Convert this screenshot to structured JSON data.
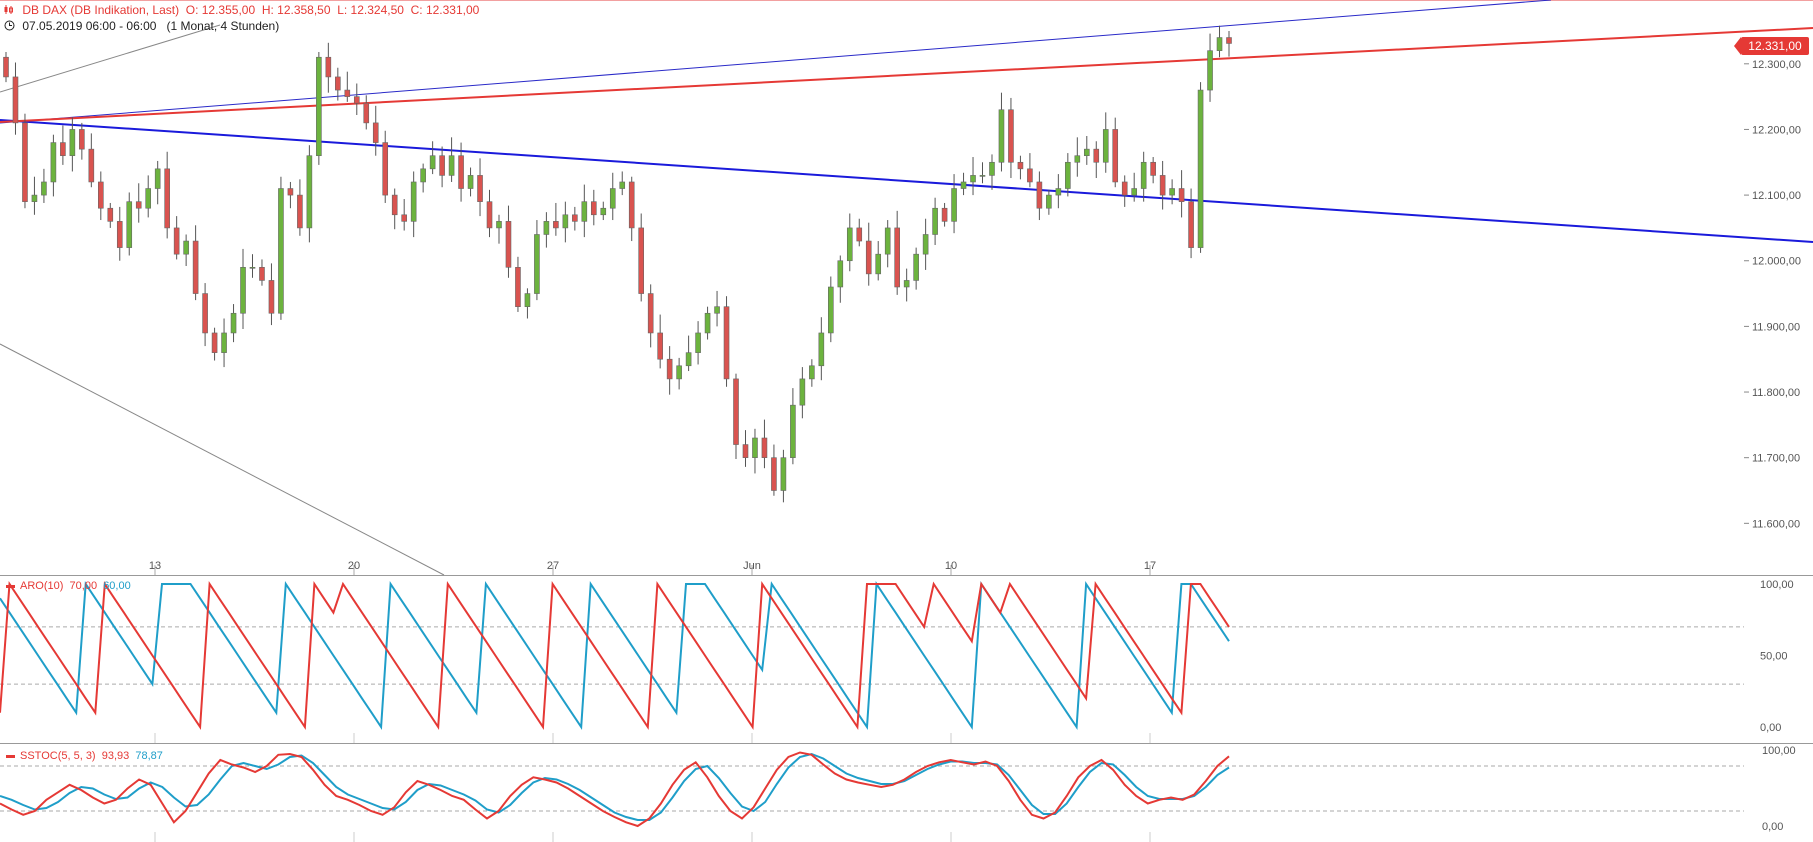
{
  "header": {
    "instrument": "DB DAX (DB Indikation, Last)",
    "open": "O: 12.355,00",
    "high": "H: 12.358,50",
    "low": "L: 12.324,50",
    "close": "C: 12.331,00",
    "date_range": "07.05.2019 06:00 - 06:00",
    "period": "(1 Monat, 4 Stunden)"
  },
  "last_price_label": "12.331,00",
  "colors": {
    "up": "#6cb33e",
    "down": "#d9534f",
    "red": "#e53935",
    "blue": "#1f9ec9",
    "trend_blue": "#1a1adb"
  },
  "indicators": {
    "aro": {
      "label": "ARO(10)",
      "v1": "70,00",
      "v2": "60,00"
    },
    "sstoc": {
      "label": "SSTOC(5, 5, 3)",
      "v1": "93,93",
      "v2": "78,87"
    }
  },
  "chart_data": [
    {
      "type": "candlestick",
      "x_tick_labels": [
        "13",
        "20",
        "27",
        "Jun",
        "10",
        "17"
      ],
      "y_tick_labels": [
        "12.300,00",
        "12.200,00",
        "12.100,00",
        "12.000,00",
        "11.900,00",
        "11.800,00",
        "11.700,00",
        "11.600,00"
      ],
      "y_ticks": [
        12300,
        12200,
        12100,
        12000,
        11900,
        11800,
        11700,
        11600
      ],
      "ylim": [
        11535,
        12385
      ],
      "close": [
        12280,
        12210,
        12090,
        12100,
        12120,
        12180,
        12160,
        12200,
        12170,
        12120,
        12080,
        12060,
        12020,
        12090,
        12080,
        12110,
        12140,
        12050,
        12010,
        12030,
        11950,
        11890,
        11860,
        11890,
        11920,
        11990,
        11990,
        11970,
        11920,
        12110,
        12100,
        12050,
        12160,
        12310,
        12280,
        12260,
        12250,
        12240,
        12210,
        12180,
        12100,
        12070,
        12060,
        12120,
        12140,
        12160,
        12130,
        12160,
        12110,
        12130,
        12090,
        12050,
        12060,
        11990,
        11930,
        11950,
        12040,
        12060,
        12050,
        12070,
        12060,
        12090,
        12070,
        12080,
        12110,
        12120,
        12050,
        11950,
        11890,
        11850,
        11820,
        11840,
        11860,
        11890,
        11920,
        11930,
        11820,
        11720,
        11700,
        11730,
        11700,
        11650,
        11700,
        11780,
        11820,
        11840,
        11890,
        11960,
        12000,
        12050,
        12030,
        11980,
        12010,
        12050,
        11960,
        11970,
        12010,
        12040,
        12080,
        12060,
        12110,
        12120,
        12130,
        12130,
        12150,
        12230,
        12150,
        12140,
        12120,
        12080,
        12100,
        12110,
        12150,
        12160,
        12170,
        12150,
        12200,
        12120,
        12100,
        12110,
        12150,
        12130,
        12100,
        12110,
        12090,
        12020,
        12260,
        12320,
        12340,
        12331
      ],
      "ohlc_note": ""
    },
    {
      "type": "line",
      "name": "ARO(10)",
      "ylim": [
        0,
        100
      ],
      "y_tick_labels": [
        "100,00",
        "50,00",
        "0,00"
      ],
      "series": [
        {
          "name": "70,00",
          "values": [
            10,
            100,
            90,
            80,
            70,
            60,
            50,
            40,
            30,
            20,
            10,
            100,
            90,
            80,
            70,
            60,
            50,
            40,
            30,
            20,
            10,
            0,
            100,
            90,
            80,
            70,
            60,
            50,
            40,
            30,
            20,
            10,
            0,
            100,
            90,
            80,
            100,
            90,
            80,
            70,
            60,
            50,
            40,
            30,
            20,
            10,
            0,
            100,
            90,
            80,
            70,
            60,
            50,
            40,
            30,
            20,
            10,
            0,
            100,
            90,
            80,
            70,
            60,
            50,
            40,
            30,
            20,
            10,
            0,
            100,
            90,
            80,
            70,
            60,
            50,
            40,
            30,
            20,
            10,
            0,
            100,
            90,
            80,
            70,
            60,
            50,
            40,
            30,
            20,
            10,
            0,
            100,
            100,
            100,
            100,
            90,
            80,
            70,
            100,
            90,
            80,
            70,
            60,
            100,
            90,
            80,
            100,
            90,
            80,
            70,
            60,
            50,
            40,
            30,
            20,
            100,
            90,
            80,
            70,
            60,
            50,
            40,
            30,
            20,
            10,
            100,
            100,
            90,
            80,
            70
          ]
        },
        {
          "name": "60,00",
          "values": [
            90,
            80,
            70,
            60,
            50,
            40,
            30,
            20,
            10,
            100,
            90,
            80,
            70,
            60,
            50,
            40,
            30,
            100,
            100,
            100,
            100,
            90,
            80,
            70,
            60,
            50,
            40,
            30,
            20,
            10,
            100,
            90,
            80,
            70,
            60,
            50,
            40,
            30,
            20,
            10,
            0,
            100,
            90,
            80,
            70,
            60,
            50,
            40,
            30,
            20,
            10,
            100,
            90,
            80,
            70,
            60,
            50,
            40,
            30,
            20,
            10,
            0,
            100,
            90,
            80,
            70,
            60,
            50,
            40,
            30,
            20,
            10,
            100,
            100,
            100,
            90,
            80,
            70,
            60,
            50,
            40,
            100,
            90,
            80,
            70,
            60,
            50,
            40,
            30,
            20,
            10,
            0,
            100,
            90,
            80,
            70,
            60,
            50,
            40,
            30,
            20,
            10,
            0,
            100,
            90,
            80,
            70,
            60,
            50,
            40,
            30,
            20,
            10,
            0,
            100,
            90,
            80,
            70,
            60,
            50,
            40,
            30,
            20,
            10,
            100,
            100,
            90,
            80,
            70,
            60
          ]
        }
      ]
    },
    {
      "type": "line",
      "name": "SSTOC(5, 5, 3)",
      "ylim": [
        0,
        100
      ],
      "y_tick_labels": [
        "100,00",
        "0,00"
      ],
      "series": [
        {
          "name": "93,93",
          "values": [
            30,
            22,
            15,
            20,
            35,
            45,
            55,
            48,
            38,
            30,
            35,
            50,
            62,
            55,
            30,
            5,
            20,
            45,
            70,
            88,
            82,
            78,
            72,
            80,
            95,
            96,
            92,
            75,
            55,
            40,
            35,
            28,
            20,
            15,
            25,
            45,
            60,
            55,
            48,
            40,
            35,
            22,
            10,
            20,
            40,
            55,
            65,
            62,
            58,
            50,
            40,
            30,
            20,
            12,
            5,
            0,
            10,
            30,
            55,
            75,
            85,
            65,
            40,
            20,
            10,
            25,
            50,
            75,
            92,
            98,
            95,
            82,
            70,
            62,
            58,
            55,
            52,
            55,
            62,
            72,
            80,
            85,
            88,
            85,
            82,
            86,
            80,
            60,
            35,
            15,
            10,
            18,
            40,
            65,
            80,
            88,
            75,
            55,
            40,
            30,
            35,
            38,
            35,
            42,
            60,
            80,
            93
          ]
        },
        {
          "name": "78,87",
          "values": [
            40,
            35,
            28,
            22,
            24,
            32,
            44,
            52,
            50,
            42,
            36,
            38,
            50,
            58,
            52,
            38,
            26,
            28,
            42,
            62,
            80,
            84,
            80,
            76,
            82,
            92,
            94,
            84,
            68,
            52,
            42,
            36,
            30,
            24,
            22,
            32,
            48,
            56,
            54,
            48,
            42,
            34,
            22,
            18,
            28,
            44,
            58,
            64,
            62,
            56,
            48,
            38,
            28,
            18,
            12,
            8,
            8,
            18,
            38,
            60,
            76,
            80,
            64,
            44,
            26,
            20,
            32,
            56,
            78,
            92,
            96,
            90,
            80,
            70,
            64,
            60,
            56,
            56,
            60,
            68,
            76,
            82,
            86,
            86,
            84,
            84,
            82,
            68,
            48,
            28,
            16,
            16,
            30,
            52,
            72,
            84,
            82,
            68,
            52,
            40,
            36,
            36,
            36,
            40,
            52,
            68,
            78
          ]
        }
      ]
    }
  ]
}
